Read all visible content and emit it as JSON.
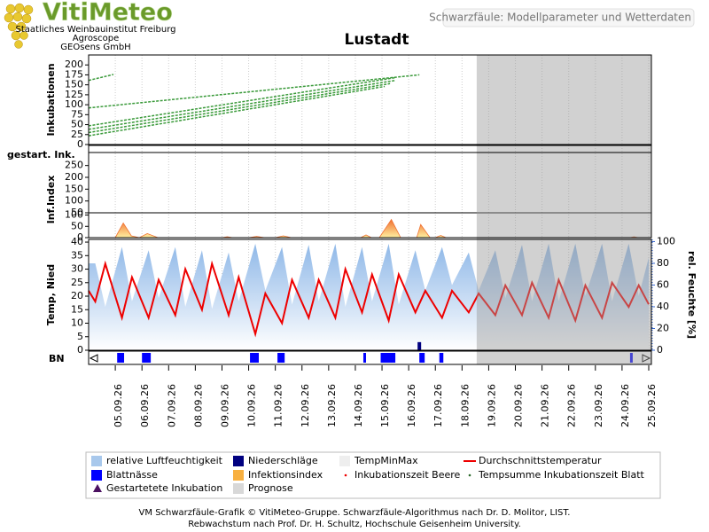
{
  "header": {
    "logo": "VitiMeteo",
    "logo_lines": [
      "Staatliches Weinbauinstitut Freiburg",
      "Agroscope",
      "GEOsens GmbH"
    ],
    "page_title": "Schwarzfäule: Modellparameter und Wetterdaten",
    "title": "Lustadt"
  },
  "started_row": {
    "label": "gestart. Ink."
  },
  "prognose": {
    "start": 18.55,
    "color": "#9a9a9a"
  },
  "chart_data": [
    {
      "type": "line",
      "ylabel": "Inkubationen",
      "ylim": [
        0,
        225
      ],
      "yticks": [
        0,
        25,
        50,
        75,
        100,
        125,
        150,
        175,
        200
      ],
      "series": [
        {
          "color": "#3a9a3a",
          "dashed": true,
          "x": [
            4.0,
            4.93
          ],
          "values": [
            161,
            176
          ]
        },
        {
          "color": "#3a9a3a",
          "dashed": true,
          "x": [
            4.0,
            16.4
          ],
          "values": [
            92,
            175
          ]
        },
        {
          "color": "#3a9a3a",
          "dashed": true,
          "x": [
            4.0,
            15.5
          ],
          "values": [
            47,
            168
          ]
        },
        {
          "color": "#3a9a3a",
          "dashed": true,
          "x": [
            4.0,
            15.5
          ],
          "values": [
            38,
            161
          ]
        },
        {
          "color": "#3a9a3a",
          "dashed": true,
          "x": [
            4.0,
            15.3
          ],
          "values": [
            30,
            153
          ]
        },
        {
          "color": "#3a9a3a",
          "dashed": true,
          "x": [
            4.0,
            15.1
          ],
          "values": [
            22,
            146
          ]
        }
      ]
    },
    {
      "type": "area",
      "ylabel": "Inf.Index",
      "ylim": [
        0,
        110
      ],
      "yticks": [
        0,
        50,
        100
      ],
      "upper_ylim": [
        50,
        305
      ],
      "upper_yticks": [
        50,
        100,
        150,
        200,
        250
      ],
      "series": [
        {
          "color": "#f07030",
          "color2": "#fff0a0",
          "x": [
            5.0,
            5.3,
            5.6,
            5.9,
            6.2,
            6.6,
            9.0,
            9.2,
            9.4,
            10.0,
            10.3,
            10.6,
            11.0,
            11.3,
            11.6,
            14.2,
            14.4,
            14.6,
            14.9,
            15.35,
            15.7,
            16.3,
            16.45,
            16.8,
            17.0,
            17.2,
            17.4,
            24.3,
            24.45,
            24.6
          ],
          "values": [
            0,
            65,
            8,
            0,
            18,
            0,
            0,
            4,
            0,
            0,
            5,
            0,
            0,
            8,
            0,
            0,
            12,
            0,
            0,
            80,
            0,
            0,
            58,
            0,
            0,
            10,
            0,
            0,
            4,
            0
          ]
        }
      ]
    },
    {
      "type": "line",
      "ylabel": "Temp, Nied",
      "y2label": "rel. Feuchte [%]",
      "ylim": [
        0,
        41
      ],
      "yticks": [
        0,
        5,
        10,
        15,
        20,
        25,
        30,
        35,
        40
      ],
      "y2lim": [
        0,
        102
      ],
      "y2ticks": [
        0,
        20,
        40,
        60,
        80,
        100
      ],
      "series": [
        {
          "kind": "area",
          "axis": "y2",
          "color": "#8fb8e8",
          "x": [
            4.0,
            4.25,
            4.625,
            5.25,
            5.625,
            6.25,
            6.625,
            7.25,
            7.625,
            8.25,
            8.625,
            9.25,
            9.625,
            10.25,
            10.625,
            11.25,
            11.625,
            12.25,
            12.625,
            13.25,
            13.625,
            14.25,
            14.625,
            15.25,
            15.625,
            16.25,
            16.625,
            17.25,
            17.625,
            18.25,
            18.625,
            19.25,
            19.625,
            20.25,
            20.625,
            21.25,
            21.625,
            22.25,
            22.625,
            23.25,
            23.625,
            24.25,
            24.625,
            25.0
          ],
          "values": [
            80,
            80,
            40,
            95,
            45,
            92,
            48,
            95,
            40,
            92,
            38,
            90,
            45,
            98,
            55,
            95,
            42,
            97,
            45,
            98,
            40,
            95,
            45,
            98,
            42,
            92,
            55,
            95,
            60,
            90,
            55,
            92,
            48,
            97,
            45,
            98,
            45,
            98,
            50,
            98,
            45,
            98,
            50,
            85
          ]
        },
        {
          "kind": "line",
          "color": "#ee0000",
          "x": [
            4.0,
            4.25,
            4.625,
            5.25,
            5.625,
            6.25,
            6.625,
            7.25,
            7.625,
            8.25,
            8.625,
            9.25,
            9.625,
            10.25,
            10.625,
            11.25,
            11.625,
            12.25,
            12.625,
            13.25,
            13.625,
            14.25,
            14.625,
            15.25,
            15.625,
            16.25,
            16.625,
            17.25,
            17.625,
            18.25,
            18.625,
            19.25,
            19.625,
            20.25,
            20.625,
            21.25,
            21.625,
            22.25,
            22.625,
            23.25,
            23.625,
            24.25,
            24.625,
            25.0
          ],
          "values": [
            22,
            18,
            32,
            12,
            27,
            12,
            26,
            13,
            30,
            15,
            32,
            13,
            27,
            6,
            21,
            10,
            26,
            12,
            26,
            12,
            30,
            14,
            28,
            11,
            28,
            14,
            22,
            12,
            22,
            14,
            21,
            13,
            24,
            13,
            25,
            12,
            26,
            11,
            24,
            12,
            25,
            16,
            24,
            17
          ]
        },
        {
          "kind": "bar",
          "color": "#000080",
          "x": [
            16.4
          ],
          "values": [
            3
          ]
        }
      ]
    },
    {
      "type": "bar",
      "ylabel": "BN",
      "color": "#0000ff",
      "intervals": [
        [
          5.07,
          5.33
        ],
        [
          6.0,
          6.33
        ],
        [
          10.05,
          10.38
        ],
        [
          11.08,
          11.35
        ],
        [
          14.3,
          14.4
        ],
        [
          14.95,
          15.5
        ],
        [
          16.4,
          16.6
        ],
        [
          17.15,
          17.3
        ],
        [
          24.3,
          24.4
        ]
      ],
      "xlim": [
        4,
        25.1
      ],
      "xticks": [
        {
          "value": 5,
          "label": "05.09.26"
        },
        {
          "value": 6,
          "label": "06.09.26"
        },
        {
          "value": 7,
          "label": "07.09.26"
        },
        {
          "value": 8,
          "label": "08.09.26"
        },
        {
          "value": 9,
          "label": "09.09.26"
        },
        {
          "value": 10,
          "label": "10.09.26"
        },
        {
          "value": 11,
          "label": "11.09.26"
        },
        {
          "value": 12,
          "label": "12.09.26"
        },
        {
          "value": 13,
          "label": "13.09.26"
        },
        {
          "value": 14,
          "label": "14.09.26"
        },
        {
          "value": 15,
          "label": "15.09.26"
        },
        {
          "value": 16,
          "label": "16.09.26"
        },
        {
          "value": 17,
          "label": "17.09.26"
        },
        {
          "value": 18,
          "label": "18.09.26"
        },
        {
          "value": 19,
          "label": "19.09.26"
        },
        {
          "value": 20,
          "label": "20.09.26"
        },
        {
          "value": 21,
          "label": "21.09.26"
        },
        {
          "value": 22,
          "label": "22.09.26"
        },
        {
          "value": 23,
          "label": "23.09.26"
        },
        {
          "value": 24,
          "label": "24.09.26"
        },
        {
          "value": 25,
          "label": "25.09.26"
        }
      ]
    }
  ],
  "legend": [
    {
      "label": "relative Luftfeuchtigkeit",
      "color": "#a8c8ec",
      "symbol": "rect"
    },
    {
      "label": "Niederschläge",
      "color": "#000080",
      "symbol": "rect"
    },
    {
      "label": "TempMinMax",
      "color": "#eeeeee",
      "symbol": "rect"
    },
    {
      "label": "Durchschnittstemperatur",
      "color": "#ee0000",
      "symbol": "line"
    },
    {
      "label": "Blattnässe",
      "color": "#0000ff",
      "symbol": "rect"
    },
    {
      "label": "Infektionsindex",
      "color": "#f8b040",
      "symbol": "rect"
    },
    {
      "label": "Inkubationszeit Beere",
      "color": "#ee0000",
      "symbol": "dot"
    },
    {
      "label": "Tempsumme Inkubationszeit Blatt",
      "color": "#2a6a2a",
      "symbol": "dot"
    },
    {
      "label": "Gestartetete Inkubation",
      "color": "#4b1060",
      "symbol": "triangle"
    },
    {
      "label": "Prognose",
      "color": "#d8d8d8",
      "symbol": "rect"
    }
  ],
  "footer": [
    "VM Schwarzfäule-Grafik © VitiMeteo-Gruppe. Schwarzfäule-Algorithmus nach Dr. D. Molitor, LIST.",
    "Rebwachstum nach Prof. Dr. H. Schultz, Hochschule Geisenheim University."
  ]
}
